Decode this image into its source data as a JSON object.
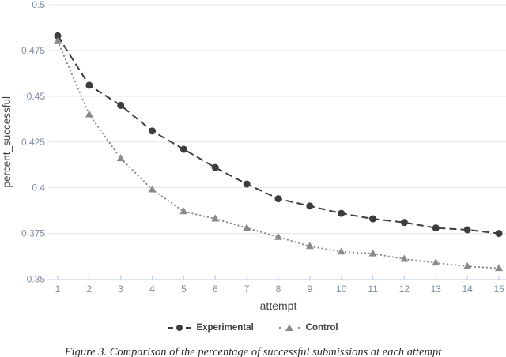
{
  "figure": {
    "caption": "Figure 3. Comparison of the percentage of successful submissions at each attempt"
  },
  "chart_data": {
    "type": "line",
    "title": "",
    "xlabel": "attempt",
    "ylabel": "percent_successful",
    "x": [
      1,
      2,
      3,
      4,
      5,
      6,
      7,
      8,
      9,
      10,
      11,
      12,
      13,
      14,
      15
    ],
    "xtick_labels": [
      "1",
      "2",
      "3",
      "4",
      "5",
      "6",
      "7",
      "8",
      "9",
      "10",
      "11",
      "12",
      "13",
      "14",
      "15"
    ],
    "ytick_labels": [
      "0.5",
      "0.475",
      "0.45",
      "0.425",
      "0.4",
      "0.375",
      "0.35"
    ],
    "ytick_values": [
      0.5,
      0.475,
      0.45,
      0.425,
      0.4,
      0.375,
      0.35
    ],
    "ylim": [
      0.35,
      0.5
    ],
    "grid": true,
    "legend_position": "bottom",
    "series": [
      {
        "name": "Experimental",
        "marker": "circle",
        "line_style": "dashed",
        "color": "#3d3d3d",
        "values": [
          0.483,
          0.456,
          0.445,
          0.431,
          0.421,
          0.411,
          0.402,
          0.394,
          0.39,
          0.386,
          0.383,
          0.381,
          0.378,
          0.377,
          0.375
        ]
      },
      {
        "name": "Control",
        "marker": "triangle",
        "line_style": "dotted",
        "color": "#8a8a8a",
        "values": [
          0.48,
          0.44,
          0.416,
          0.399,
          0.387,
          0.383,
          0.378,
          0.373,
          0.368,
          0.365,
          0.364,
          0.361,
          0.359,
          0.357,
          0.356
        ]
      }
    ]
  },
  "colors": {
    "gridline": "#e3e3e3",
    "axis_line": "#c3d3e5",
    "tick_label": "#7e8ea1",
    "axis_title": "#434343",
    "legend_text": "#3d3d3d",
    "caption_text": "#2b2b2b"
  }
}
